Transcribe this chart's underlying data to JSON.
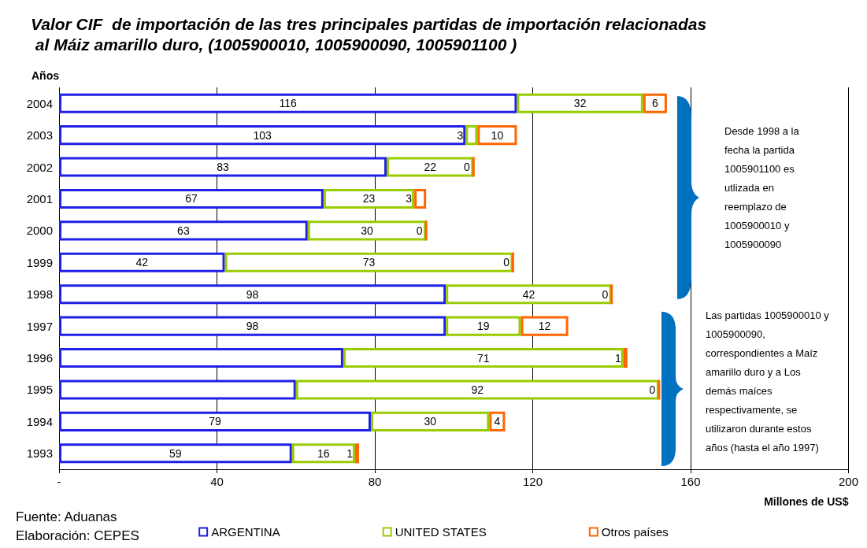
{
  "chart_data": {
    "type": "bar",
    "orientation": "horizontal",
    "stacked": true,
    "title": "Valor CIF  de importación de las tres principales partidas de importación relacionadas al Máiz amarillo duro, (1005900010, 1005900090, 1005901100 )",
    "ylabel": "Años",
    "xlabel": "Millones de US$",
    "categories": [
      "2004",
      "2003",
      "2002",
      "2001",
      "2000",
      "1999",
      "1998",
      "1997",
      "1996",
      "1995",
      "1994",
      "1993"
    ],
    "series": [
      {
        "name": "ARGENTINA",
        "color": "#1f1fe6",
        "values": [
          116,
          103,
          83,
          67,
          63,
          42,
          98,
          98,
          72,
          60,
          79,
          59
        ],
        "value_labels": [
          "116",
          "103",
          "83",
          "67",
          "63",
          "42",
          "98",
          "98",
          null,
          null,
          "79",
          "59"
        ]
      },
      {
        "name": "UNITED STATES",
        "color": "#99cc00",
        "values": [
          32,
          3,
          22,
          23,
          30,
          73,
          42,
          19,
          71,
          92,
          30,
          16
        ],
        "value_labels": [
          "32",
          "3",
          "22",
          "23",
          "30",
          "73",
          "42",
          "19",
          "71",
          "92",
          "30",
          "16"
        ]
      },
      {
        "name": "Otros países",
        "color": "#ff6600",
        "values": [
          6,
          10,
          0,
          3,
          0,
          0,
          0,
          12,
          1,
          0,
          4,
          1
        ],
        "value_labels": [
          "6",
          "10",
          "0",
          "3",
          "0",
          "0",
          "0",
          "12",
          "1",
          "0",
          "4",
          "1"
        ]
      }
    ],
    "xlim": [
      0,
      200
    ],
    "xticks": [
      {
        "value": 0,
        "label": "-"
      },
      40,
      80,
      120,
      160,
      200
    ],
    "grid": "x",
    "legend": "bottom",
    "annotations": [
      "Desde 1998 a la fecha la partida 1005901100 es utlizada en reemplazo de 1005900010 y 1005900090",
      "Las partidas 1005900010 y 1005900090, correspondientes a Maíz amarillo duro y a Los demás maíces respectivamente, se utilizaron durante estos años (hasta el año 1997)",
      "Fuente: Aduanas",
      "Elaboración: CEPES"
    ]
  }
}
